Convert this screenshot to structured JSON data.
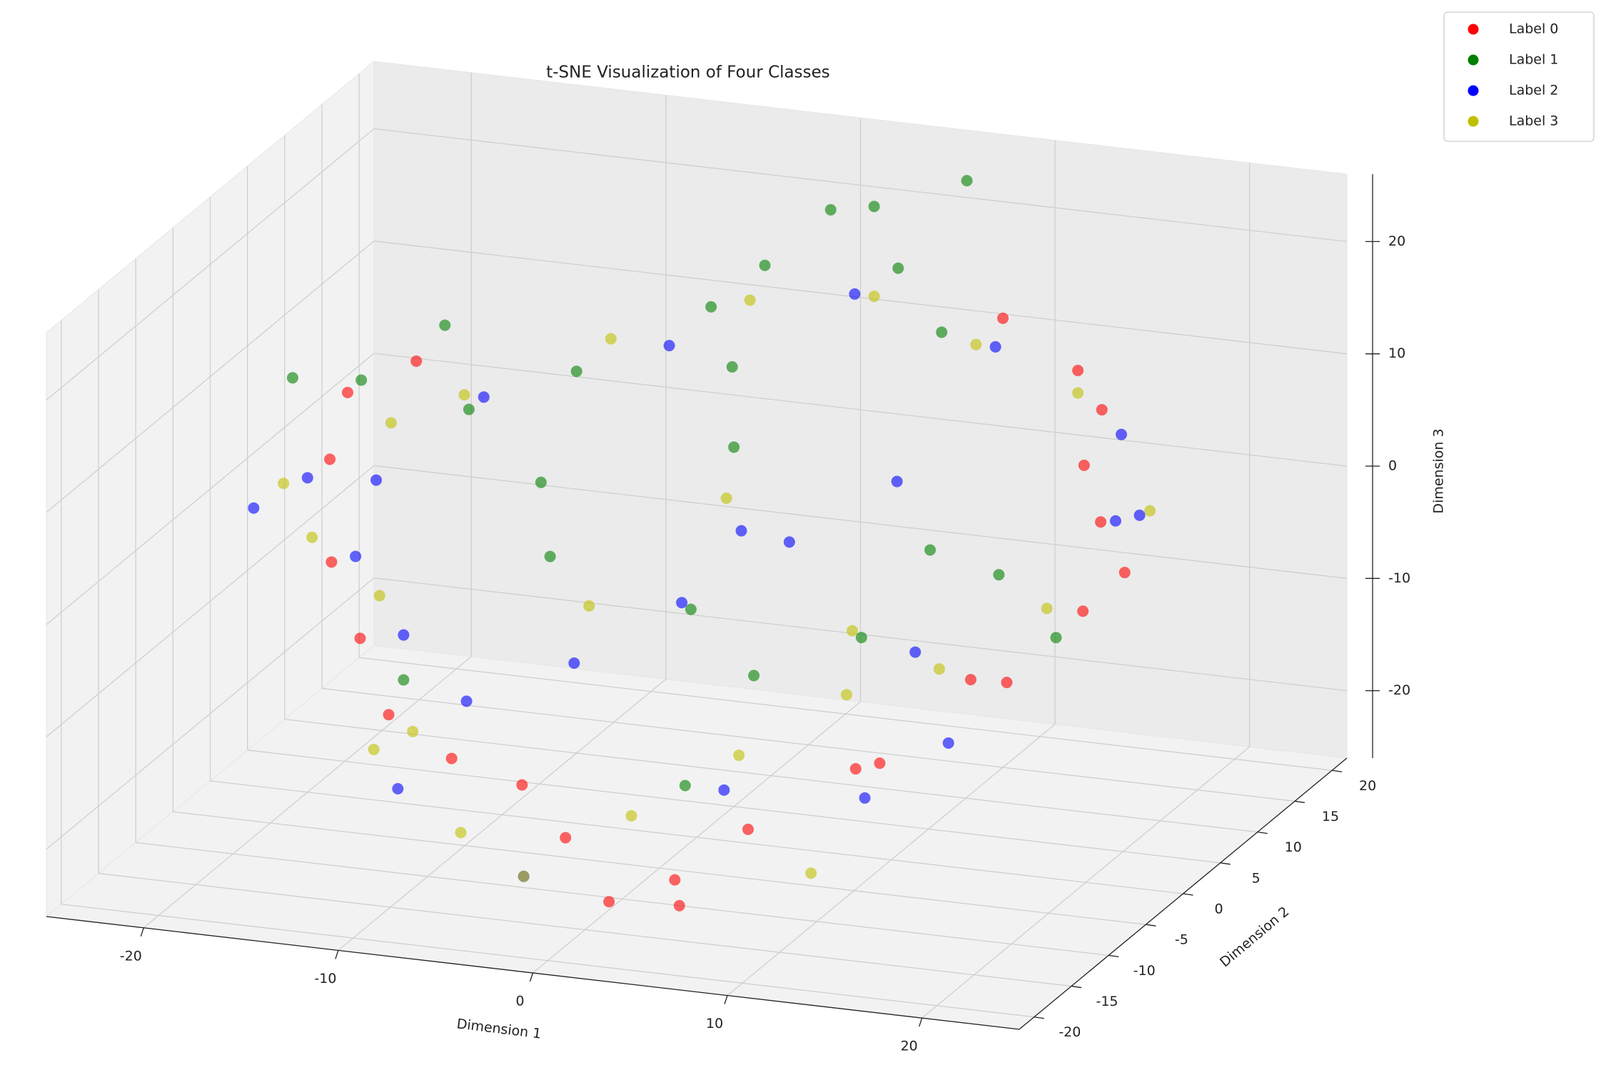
{
  "chart_data": {
    "type": "scatter3d",
    "title": "t-SNE Visualization of Four Classes",
    "xlabel": "Dimension 1",
    "ylabel": "Dimension 2",
    "zlabel": "Dimension 3",
    "xlim": [
      -25,
      25
    ],
    "ylim": [
      -22,
      22
    ],
    "zlim": [
      -26,
      26
    ],
    "xticks": [
      -20,
      -10,
      0,
      10,
      20
    ],
    "yticks": [
      -20,
      -15,
      -10,
      -5,
      0,
      5,
      10,
      15,
      20
    ],
    "zticks": [
      -20,
      -10,
      0,
      10,
      20
    ],
    "grid": true,
    "legend": "upper right",
    "series": [
      {
        "name": "Label 0",
        "color": "#ff0000",
        "x": [
          18,
          20,
          21,
          19,
          22,
          17,
          15,
          12,
          8,
          5,
          2,
          -1,
          -4,
          -8,
          -12,
          -15,
          -18,
          -20,
          -21,
          -19,
          10,
          14,
          16,
          6
        ],
        "y": [
          5,
          2,
          -3,
          -8,
          0,
          10,
          12,
          -10,
          -14,
          -16,
          -17,
          -15,
          -13,
          -12,
          -10,
          -6,
          -2,
          3,
          8,
          12,
          15,
          -12,
          -5,
          -18
        ],
        "z": [
          8,
          5,
          0,
          -4,
          2,
          10,
          12,
          -12,
          -16,
          -20,
          -22,
          -18,
          -15,
          -14,
          -12,
          -8,
          -4,
          2,
          5,
          6,
          14,
          -10,
          -6,
          -21
        ]
      },
      {
        "name": "Label 1",
        "color": "#008000",
        "x": [
          -5,
          -3,
          0,
          3,
          5,
          8,
          -10,
          -14,
          -18,
          -20,
          -8,
          -6,
          2,
          6,
          10,
          12,
          14,
          -2,
          4,
          -12,
          -16,
          20,
          0,
          7
        ],
        "y": [
          15,
          17,
          18,
          16,
          14,
          12,
          10,
          6,
          2,
          -2,
          0,
          -4,
          -6,
          -8,
          -4,
          0,
          4,
          10,
          -12,
          -8,
          8,
          -4,
          5,
          18
        ],
        "z": [
          12,
          15,
          20,
          22,
          18,
          14,
          8,
          6,
          10,
          12,
          4,
          0,
          -2,
          -6,
          -4,
          2,
          -2,
          10,
          -14,
          -10,
          12,
          -2,
          6,
          24
        ]
      },
      {
        "name": "Label 2",
        "color": "#0000ff",
        "x": [
          -20,
          -16,
          -12,
          -8,
          -4,
          0,
          4,
          8,
          12,
          16,
          20,
          18,
          10,
          2,
          -6,
          -14,
          -18,
          -10,
          6,
          14,
          -2,
          22,
          -22,
          0
        ],
        "y": [
          0,
          -4,
          -8,
          -10,
          -6,
          -2,
          2,
          6,
          -2,
          -8,
          4,
          10,
          14,
          16,
          12,
          8,
          4,
          -14,
          -12,
          -14,
          -18,
          2,
          -2,
          6
        ],
        "z": [
          2,
          -2,
          -6,
          -10,
          -8,
          -4,
          0,
          4,
          -6,
          -10,
          4,
          8,
          12,
          14,
          10,
          6,
          0,
          -16,
          -14,
          -12,
          -20,
          6,
          0,
          -2
        ]
      },
      {
        "name": "Label 3",
        "color": "#bfbf00",
        "x": [
          -22,
          -18,
          -14,
          -10,
          -6,
          -2,
          2,
          6,
          10,
          14,
          18,
          21,
          15,
          9,
          3,
          -3,
          -9,
          -15,
          -19,
          -4,
          8,
          12,
          -12,
          0
        ],
        "y": [
          2,
          6,
          -6,
          -12,
          -16,
          -18,
          -14,
          -10,
          -6,
          -4,
          0,
          6,
          12,
          14,
          16,
          15,
          12,
          8,
          -2,
          -4,
          0,
          -16,
          -12,
          4
        ],
        "z": [
          0,
          4,
          -4,
          -12,
          -18,
          -20,
          -16,
          -12,
          -8,
          -6,
          -2,
          4,
          10,
          12,
          14,
          13,
          10,
          6,
          -2,
          -4,
          -6,
          -18,
          -14,
          2
        ]
      }
    ]
  }
}
